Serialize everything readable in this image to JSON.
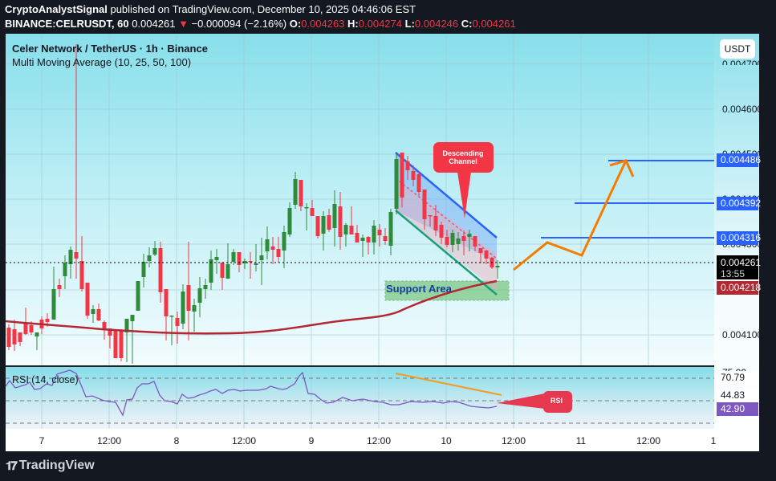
{
  "header": {
    "author": "CryptoAnalystSignal",
    "published_text": " published on TradingView.com, December 10, 2025 04:46:06 EST",
    "symbol": "BINANCE:CELRUSDT, 60",
    "last_price": "0.004261",
    "change_arrow": "▼",
    "change": "−0.000094 (−2.16%)",
    "open_label": "O:",
    "open": "0.004263",
    "high_label": "H:",
    "high": "0.004274",
    "low_label": "L:",
    "low": "0.004246",
    "close_label": "C:",
    "close": "0.004261"
  },
  "legend": {
    "title": "Celer Network / TetherUS · 1h · Binance",
    "indicator": "Multi Moving Average (10, 25, 50, 100)",
    "rsi": "RSI (14, close)"
  },
  "price_axis": {
    "currency": "USDT",
    "ticks": [
      "0.004700",
      "0.004600",
      "0.004500",
      "0.004400",
      "0.004300",
      "0.004100"
    ],
    "tags": {
      "target3": "0.004486",
      "target2": "0.004392",
      "target1": "0.004316",
      "current": "0.004261",
      "countdown": "13:55",
      "ma": "0.004218"
    }
  },
  "rsi_axis": {
    "top_tick": "75.00",
    "rsi_high": "70.79",
    "rsi_mid": "44.83",
    "rsi_current": "42.90"
  },
  "time_axis": [
    "7",
    "12:00",
    "8",
    "12:00",
    "9",
    "12:00",
    "10",
    "12:00",
    "11",
    "12:00",
    "1"
  ],
  "annotations": {
    "channel": "Descending Channel",
    "support": "Support Area",
    "rsi": "RSI"
  },
  "brand": {
    "logo_text": "TradingView"
  },
  "colors": {
    "up": "#2e8b3a",
    "down": "#f23645",
    "ma": "#b22833",
    "target_line": "#2962ff",
    "projection": "#f57c00",
    "rsi_line": "#7e57c2"
  },
  "chart_data": {
    "type": "candlestick",
    "title": "Celer Network / TetherUS · 1h · Binance",
    "symbol": "CELRUSDT",
    "timeframe": "1h",
    "xlabel": "",
    "ylabel": "USDT",
    "x_ticks": [
      "7",
      "12:00",
      "8",
      "12:00",
      "9",
      "12:00",
      "10",
      "12:00",
      "11",
      "12:00",
      "1"
    ],
    "ylim": [
      0.00406,
      0.00472
    ],
    "y_ticks": [
      0.0041,
      0.0042,
      0.0043,
      0.0044,
      0.0045,
      0.0046,
      0.0047
    ],
    "ohlc_last": {
      "open": 0.004263,
      "high": 0.004274,
      "low": 0.004246,
      "close": 0.004261
    },
    "moving_average_last": 0.004218,
    "horizontal_levels": [
      0.004316,
      0.004392,
      0.004486
    ],
    "annotations": [
      "Descending Channel",
      "Support Area",
      "RSI"
    ],
    "rsi": {
      "period": 14,
      "levels": [
        70.79,
        44.83
      ],
      "current": 42.9,
      "upper_band": 75
    }
  }
}
